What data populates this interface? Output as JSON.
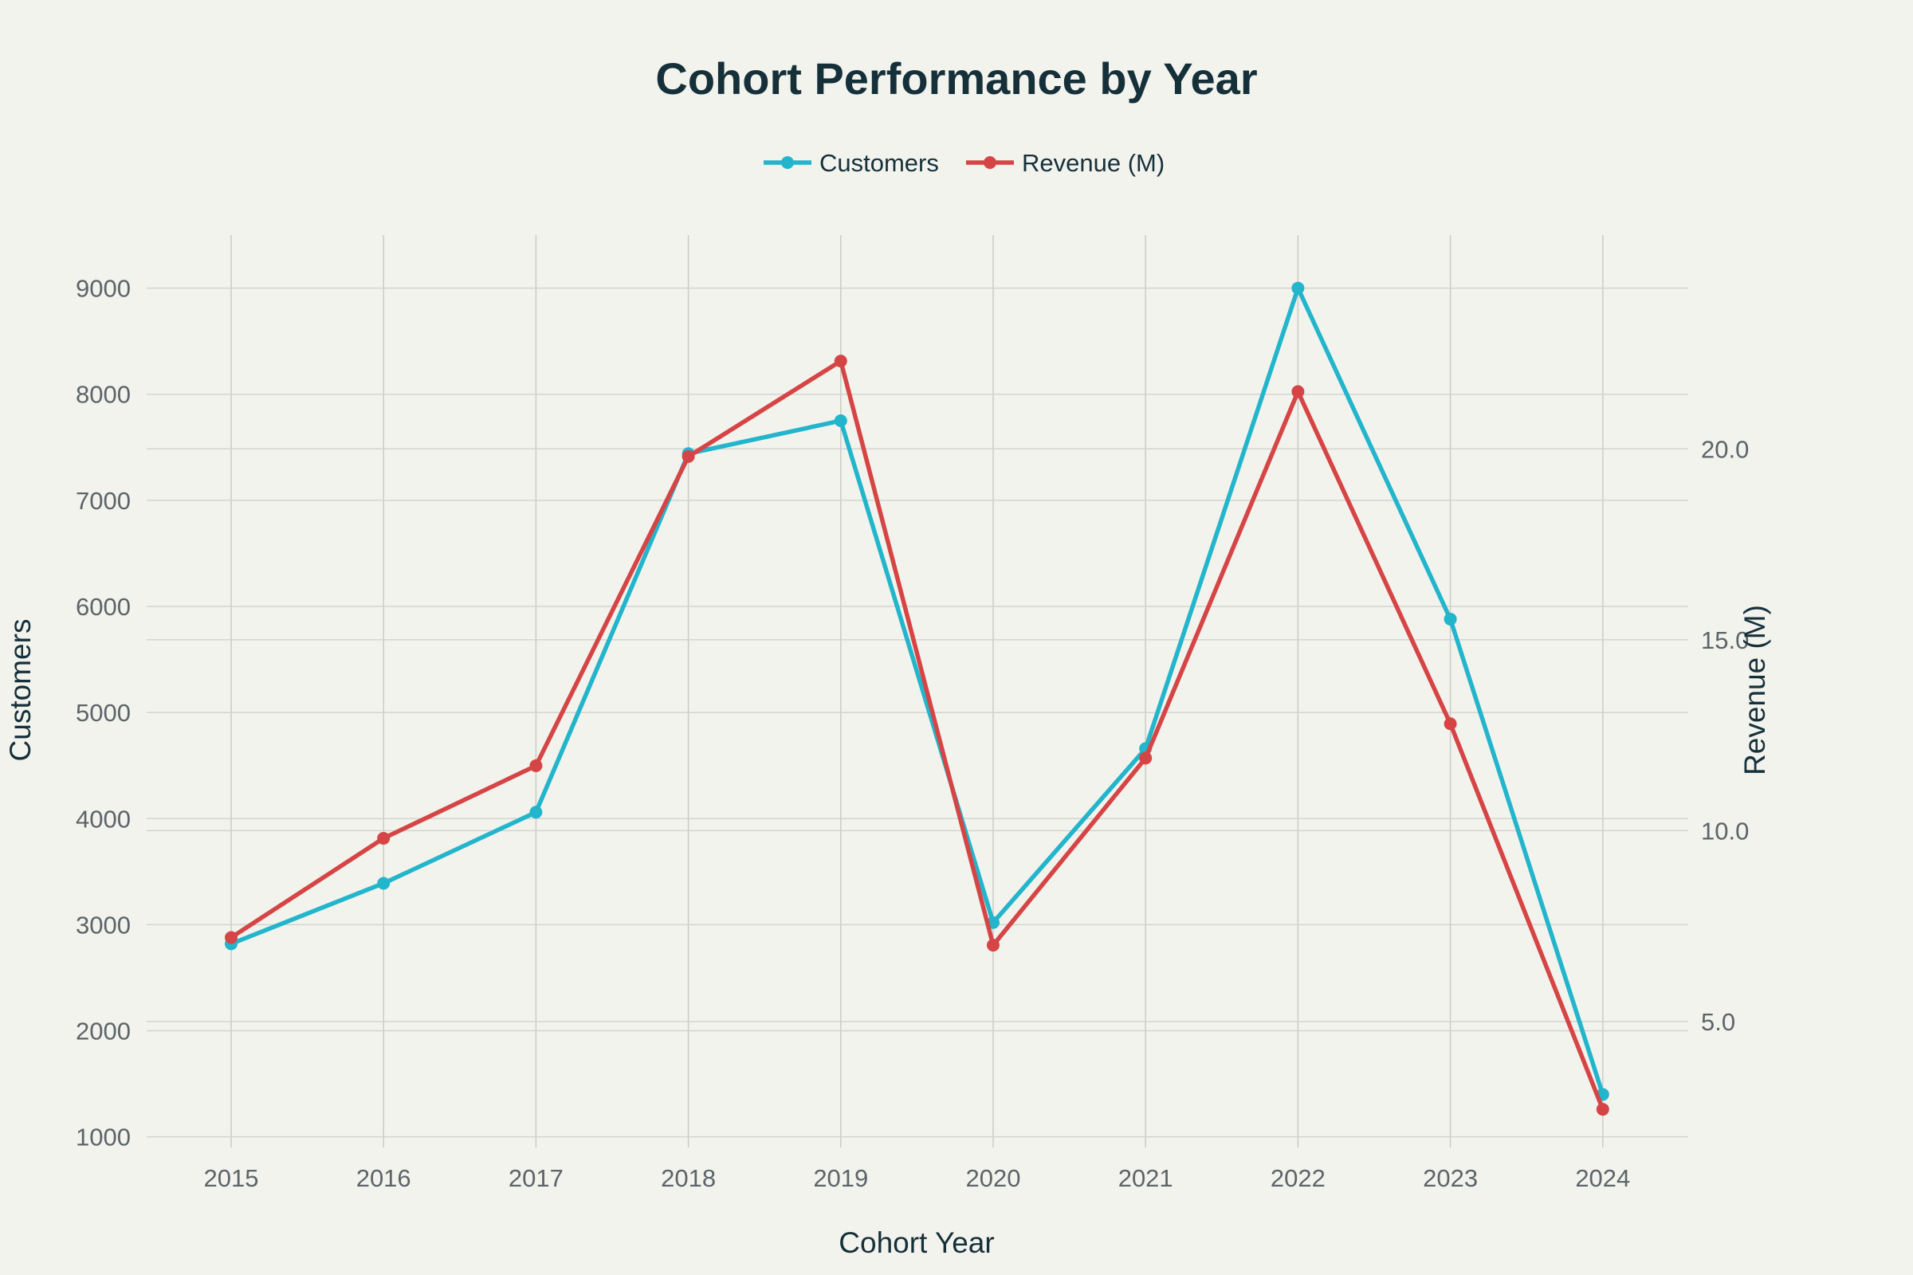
{
  "chart_data": {
    "type": "line",
    "title": "Cohort Performance by Year",
    "xlabel": "Cohort Year",
    "ylabel": "Customers",
    "y2label": "Revenue (M)",
    "categories": [
      "2015",
      "2016",
      "2017",
      "2018",
      "2019",
      "2020",
      "2021",
      "2022",
      "2023",
      "2024"
    ],
    "ylim": [
      900,
      9500
    ],
    "y2lim": [
      1.7,
      25.6
    ],
    "yticks": [
      1000,
      2000,
      3000,
      4000,
      5000,
      6000,
      7000,
      8000,
      9000
    ],
    "y2ticks": [
      "5.0",
      "10.0",
      "15.0",
      "20.0"
    ],
    "legend_position": "top-center",
    "grid": true,
    "series": [
      {
        "name": "Customers",
        "axis": "left",
        "color": "#22b5cb",
        "values": [
          2820,
          3390,
          4060,
          7440,
          7750,
          3020,
          4660,
          9000,
          5880,
          1400
        ]
      },
      {
        "name": "Revenue (M)",
        "axis": "right",
        "color": "#d64545",
        "values": [
          7.2,
          9.8,
          11.7,
          19.8,
          22.3,
          7.0,
          11.9,
          21.5,
          12.8,
          2.7
        ]
      }
    ]
  }
}
